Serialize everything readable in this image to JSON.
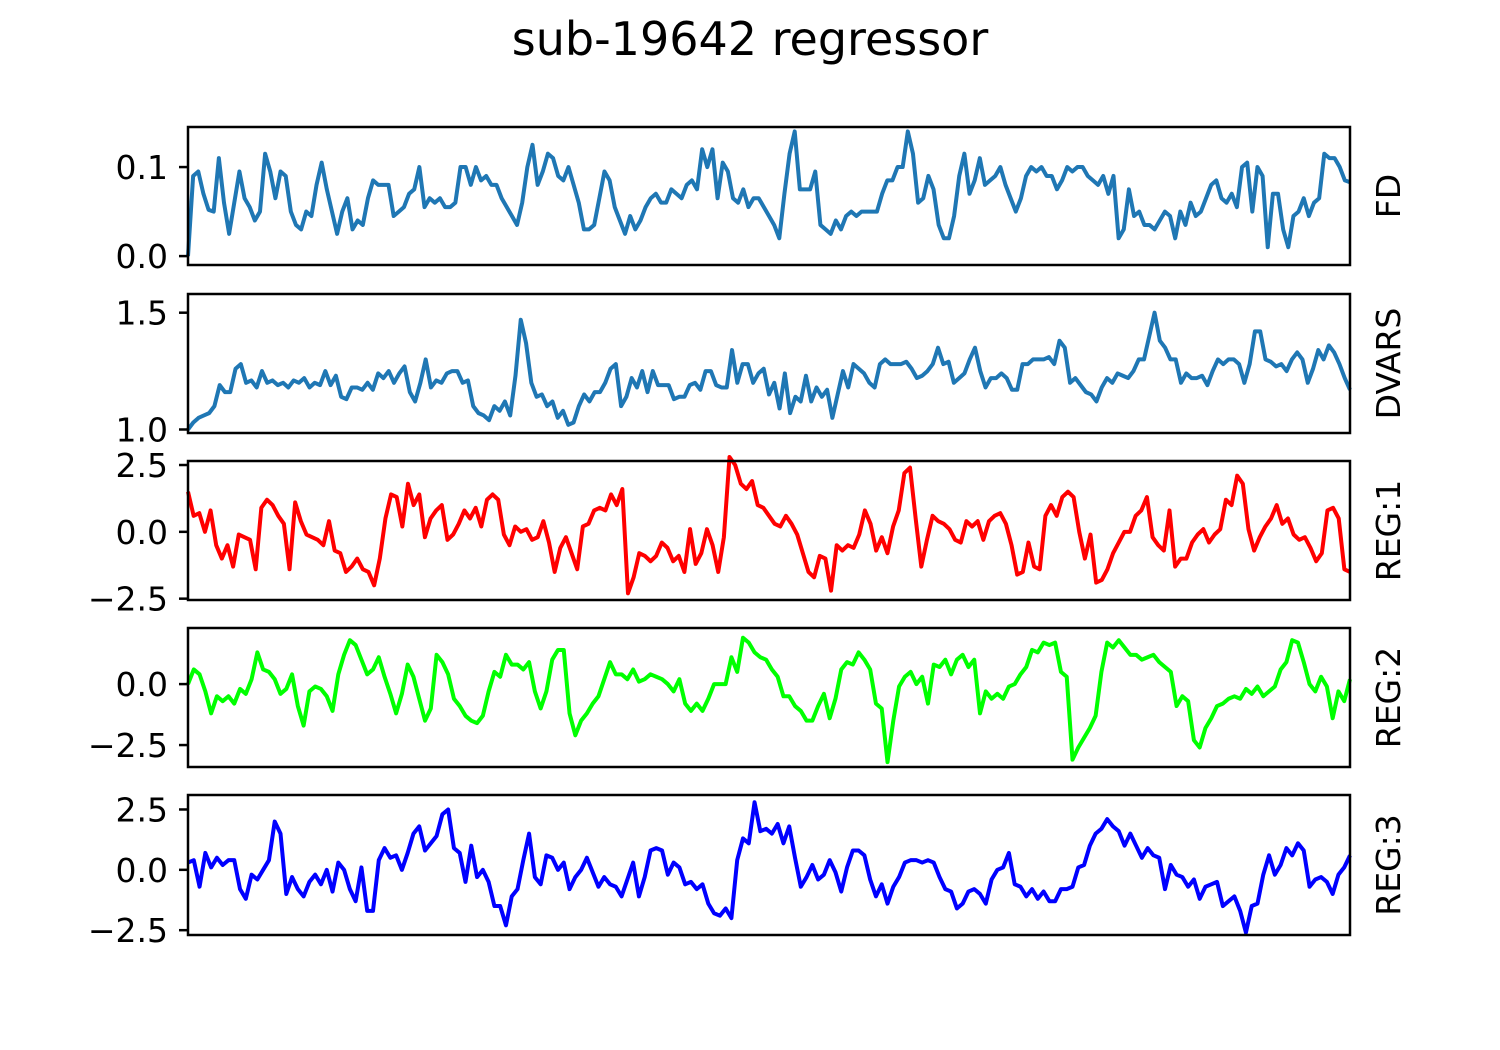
{
  "figure": {
    "title": "sub-19642 regressor"
  },
  "chart_data": [
    {
      "type": "line",
      "name": "FD",
      "color": "#1f77b4",
      "ylim": [
        -0.01,
        0.145
      ],
      "yticks": [
        0.0,
        0.1
      ],
      "yticklabels": [
        "0.0",
        "0.1"
      ],
      "values": [
        0.0,
        0.09,
        0.095,
        0.07,
        0.052,
        0.05,
        0.11,
        0.06,
        0.025,
        0.06,
        0.095,
        0.065,
        0.055,
        0.04,
        0.05,
        0.115,
        0.095,
        0.065,
        0.095,
        0.09,
        0.05,
        0.035,
        0.03,
        0.05,
        0.045,
        0.08,
        0.105,
        0.075,
        0.05,
        0.025,
        0.05,
        0.065,
        0.03,
        0.04,
        0.035,
        0.065,
        0.085,
        0.08,
        0.08,
        0.08,
        0.045,
        0.05,
        0.055,
        0.07,
        0.075,
        0.1,
        0.055,
        0.065,
        0.06,
        0.065,
        0.055,
        0.055,
        0.06,
        0.1,
        0.1,
        0.08,
        0.1,
        0.085,
        0.09,
        0.08,
        0.08,
        0.065,
        0.055,
        0.045,
        0.035,
        0.06,
        0.1,
        0.125,
        0.08,
        0.095,
        0.115,
        0.11,
        0.09,
        0.085,
        0.1,
        0.08,
        0.06,
        0.03,
        0.03,
        0.035,
        0.065,
        0.095,
        0.085,
        0.055,
        0.04,
        0.025,
        0.045,
        0.03,
        0.04,
        0.055,
        0.065,
        0.07,
        0.06,
        0.06,
        0.075,
        0.07,
        0.065,
        0.08,
        0.085,
        0.075,
        0.12,
        0.1,
        0.12,
        0.065,
        0.105,
        0.095,
        0.065,
        0.06,
        0.075,
        0.055,
        0.065,
        0.065,
        0.055,
        0.045,
        0.035,
        0.02,
        0.07,
        0.115,
        0.14,
        0.075,
        0.075,
        0.075,
        0.095,
        0.035,
        0.03,
        0.025,
        0.04,
        0.03,
        0.045,
        0.05,
        0.045,
        0.05,
        0.05,
        0.05,
        0.05,
        0.07,
        0.085,
        0.085,
        0.1,
        0.1,
        0.14,
        0.115,
        0.06,
        0.065,
        0.09,
        0.075,
        0.035,
        0.02,
        0.02,
        0.045,
        0.09,
        0.115,
        0.07,
        0.085,
        0.11,
        0.08,
        0.085,
        0.09,
        0.1,
        0.08,
        0.065,
        0.05,
        0.065,
        0.09,
        0.1,
        0.095,
        0.1,
        0.09,
        0.09,
        0.075,
        0.085,
        0.1,
        0.095,
        0.1,
        0.1,
        0.09,
        0.085,
        0.08,
        0.09,
        0.07,
        0.09,
        0.02,
        0.03,
        0.075,
        0.045,
        0.05,
        0.035,
        0.035,
        0.03,
        0.04,
        0.05,
        0.045,
        0.02,
        0.05,
        0.035,
        0.06,
        0.045,
        0.05,
        0.065,
        0.08,
        0.085,
        0.065,
        0.06,
        0.07,
        0.055,
        0.1,
        0.105,
        0.05,
        0.1,
        0.09,
        0.01,
        0.07,
        0.07,
        0.03,
        0.01,
        0.045,
        0.05,
        0.065,
        0.045,
        0.06,
        0.065,
        0.115,
        0.11,
        0.11,
        0.1,
        0.085,
        0.083
      ]
    },
    {
      "type": "line",
      "name": "DVARS",
      "color": "#1f77b4",
      "ylim": [
        0.985,
        1.58
      ],
      "yticks": [
        1.0,
        1.5
      ],
      "yticklabels": [
        "1.0",
        "1.5"
      ],
      "values": [
        1.0,
        1.03,
        1.05,
        1.06,
        1.07,
        1.1,
        1.19,
        1.16,
        1.16,
        1.26,
        1.28,
        1.2,
        1.21,
        1.18,
        1.25,
        1.2,
        1.21,
        1.19,
        1.2,
        1.18,
        1.21,
        1.2,
        1.22,
        1.18,
        1.2,
        1.19,
        1.25,
        1.19,
        1.23,
        1.14,
        1.13,
        1.18,
        1.18,
        1.17,
        1.2,
        1.17,
        1.24,
        1.22,
        1.25,
        1.2,
        1.24,
        1.27,
        1.16,
        1.12,
        1.2,
        1.3,
        1.18,
        1.21,
        1.2,
        1.24,
        1.25,
        1.25,
        1.2,
        1.21,
        1.1,
        1.07,
        1.06,
        1.04,
        1.1,
        1.08,
        1.12,
        1.06,
        1.23,
        1.47,
        1.37,
        1.2,
        1.14,
        1.15,
        1.1,
        1.12,
        1.05,
        1.08,
        1.02,
        1.03,
        1.1,
        1.15,
        1.12,
        1.16,
        1.16,
        1.2,
        1.26,
        1.28,
        1.1,
        1.14,
        1.22,
        1.18,
        1.25,
        1.16,
        1.25,
        1.19,
        1.19,
        1.19,
        1.13,
        1.14,
        1.14,
        1.19,
        1.2,
        1.17,
        1.25,
        1.25,
        1.19,
        1.18,
        1.18,
        1.34,
        1.2,
        1.28,
        1.28,
        1.2,
        1.24,
        1.26,
        1.15,
        1.2,
        1.09,
        1.24,
        1.07,
        1.14,
        1.12,
        1.23,
        1.12,
        1.18,
        1.14,
        1.17,
        1.05,
        1.15,
        1.25,
        1.18,
        1.28,
        1.26,
        1.24,
        1.2,
        1.18,
        1.28,
        1.3,
        1.28,
        1.28,
        1.28,
        1.29,
        1.26,
        1.22,
        1.23,
        1.25,
        1.28,
        1.35,
        1.28,
        1.29,
        1.2,
        1.22,
        1.24,
        1.3,
        1.35,
        1.25,
        1.18,
        1.22,
        1.22,
        1.24,
        1.22,
        1.17,
        1.17,
        1.28,
        1.28,
        1.3,
        1.3,
        1.3,
        1.31,
        1.28,
        1.38,
        1.35,
        1.2,
        1.22,
        1.19,
        1.16,
        1.15,
        1.12,
        1.18,
        1.22,
        1.2,
        1.24,
        1.23,
        1.22,
        1.25,
        1.3,
        1.3,
        1.4,
        1.5,
        1.38,
        1.35,
        1.3,
        1.3,
        1.2,
        1.24,
        1.22,
        1.22,
        1.23,
        1.19,
        1.25,
        1.3,
        1.28,
        1.3,
        1.3,
        1.28,
        1.2,
        1.28,
        1.42,
        1.42,
        1.3,
        1.29,
        1.27,
        1.28,
        1.25,
        1.3,
        1.33,
        1.3,
        1.2,
        1.26,
        1.34,
        1.3,
        1.36,
        1.33,
        1.28,
        1.22,
        1.17
      ]
    },
    {
      "type": "line",
      "name": "REG:1",
      "color": "#ff0000",
      "ylim": [
        -2.55,
        2.65
      ],
      "yticks": [
        -2.5,
        0.0,
        2.5
      ],
      "yticklabels": [
        "−2.5",
        "0.0",
        "2.5"
      ],
      "values": [
        1.5,
        0.6,
        0.7,
        0.0,
        0.8,
        -0.5,
        -1.0,
        -0.5,
        -1.3,
        -0.1,
        -0.2,
        -0.3,
        -1.4,
        0.9,
        1.2,
        1.0,
        0.6,
        0.3,
        -1.4,
        1.1,
        0.4,
        -0.1,
        -0.2,
        -0.3,
        -0.5,
        0.4,
        -0.7,
        -0.8,
        -1.5,
        -1.3,
        -1.0,
        -1.4,
        -1.5,
        -2.0,
        -1.0,
        0.5,
        1.4,
        1.3,
        0.2,
        1.8,
        1.0,
        1.4,
        -0.2,
        0.5,
        0.8,
        1.0,
        -0.3,
        -0.1,
        0.3,
        0.8,
        0.5,
        0.9,
        0.2,
        1.2,
        1.4,
        1.2,
        -0.1,
        -0.5,
        0.2,
        0.0,
        0.1,
        -0.3,
        -0.2,
        0.4,
        -0.4,
        -1.5,
        -0.6,
        -0.2,
        -0.8,
        -1.4,
        0.2,
        0.3,
        0.8,
        0.9,
        0.8,
        1.4,
        1.0,
        1.6,
        -2.3,
        -1.7,
        -0.8,
        -0.9,
        -1.1,
        -0.9,
        -0.4,
        -0.6,
        -1.1,
        -0.9,
        -1.5,
        0.1,
        -1.2,
        -0.8,
        0.1,
        -0.5,
        -1.5,
        -0.2,
        2.8,
        2.5,
        1.8,
        1.6,
        1.9,
        1.0,
        0.9,
        0.6,
        0.3,
        0.2,
        0.6,
        0.3,
        -0.1,
        -0.8,
        -1.5,
        -1.7,
        -0.9,
        -1.0,
        -2.2,
        -0.5,
        -0.7,
        -0.5,
        -0.6,
        -0.1,
        0.8,
        0.3,
        -0.7,
        -0.2,
        -0.8,
        0.2,
        0.8,
        2.2,
        2.4,
        0.5,
        -1.3,
        -0.3,
        0.6,
        0.4,
        0.3,
        0.1,
        -0.3,
        -0.4,
        0.4,
        0.2,
        0.4,
        -0.3,
        0.4,
        0.6,
        0.7,
        0.3,
        -0.5,
        -1.6,
        -1.5,
        -0.4,
        -1.3,
        -1.4,
        0.6,
        1.0,
        0.6,
        1.3,
        1.5,
        1.3,
        0.0,
        -1.0,
        -0.1,
        -1.9,
        -1.8,
        -1.4,
        -0.8,
        -0.4,
        0.0,
        0.0,
        0.6,
        0.8,
        1.3,
        -0.2,
        -0.5,
        -0.7,
        0.8,
        -1.3,
        -1.0,
        -1.0,
        -0.4,
        -0.1,
        0.1,
        -0.4,
        -0.1,
        0.1,
        1.2,
        1.0,
        2.1,
        1.8,
        0.1,
        -0.7,
        -0.2,
        0.2,
        0.5,
        1.0,
        0.3,
        0.5,
        -0.1,
        -0.3,
        -0.2,
        -0.6,
        -1.1,
        -0.8,
        0.8,
        0.9,
        0.5,
        -1.4,
        -1.5
      ]
    },
    {
      "type": "line",
      "name": "REG:2",
      "color": "#00ff00",
      "ylim": [
        -3.4,
        2.3
      ],
      "yticks": [
        -2.5,
        0.0
      ],
      "yticklabels": [
        "−2.5",
        "0.0"
      ],
      "values": [
        0.0,
        0.6,
        0.4,
        -0.3,
        -1.2,
        -0.5,
        -0.7,
        -0.5,
        -0.8,
        -0.2,
        -0.4,
        0.2,
        1.3,
        0.6,
        0.5,
        0.2,
        -0.4,
        -0.2,
        0.4,
        -0.9,
        -1.7,
        -0.3,
        -0.1,
        -0.2,
        -0.5,
        -1.1,
        0.4,
        1.2,
        1.8,
        1.6,
        1.0,
        0.4,
        0.6,
        1.1,
        0.3,
        -0.4,
        -1.2,
        -0.4,
        0.8,
        0.3,
        -0.6,
        -1.5,
        -1.0,
        1.2,
        0.9,
        0.4,
        -0.6,
        -0.9,
        -1.3,
        -1.5,
        -1.6,
        -1.3,
        -0.3,
        0.5,
        0.3,
        1.2,
        0.8,
        0.8,
        0.6,
        0.9,
        -0.3,
        -1.0,
        -0.3,
        1.0,
        1.4,
        1.4,
        -1.2,
        -2.1,
        -1.5,
        -1.2,
        -0.8,
        -0.5,
        0.2,
        0.9,
        0.4,
        0.4,
        0.2,
        0.6,
        0.1,
        0.2,
        0.4,
        0.3,
        0.2,
        0.0,
        -0.3,
        0.2,
        -0.8,
        -1.1,
        -0.8,
        -1.1,
        -0.6,
        0.0,
        0.0,
        0.0,
        1.1,
        0.5,
        1.9,
        1.7,
        1.3,
        1.1,
        1.0,
        0.6,
        0.3,
        -0.5,
        -0.5,
        -0.9,
        -1.1,
        -1.5,
        -1.5,
        -0.9,
        -0.4,
        -1.4,
        -0.6,
        0.6,
        0.9,
        0.8,
        1.3,
        1.0,
        0.6,
        -0.8,
        -1.0,
        -3.2,
        -1.5,
        -0.1,
        0.3,
        0.5,
        0.0,
        0.3,
        -0.8,
        0.8,
        0.7,
        1.0,
        0.4,
        1.0,
        1.2,
        0.7,
        1.0,
        -1.2,
        -0.3,
        -0.6,
        -0.4,
        -0.6,
        -0.1,
        0.0,
        0.4,
        0.7,
        1.4,
        1.3,
        1.7,
        1.6,
        1.7,
        0.5,
        0.3,
        -3.1,
        -2.6,
        -2.2,
        -1.8,
        -1.3,
        0.5,
        1.7,
        1.5,
        1.8,
        1.5,
        1.2,
        1.2,
        1.0,
        1.1,
        1.2,
        0.9,
        0.7,
        0.5,
        -0.9,
        -0.5,
        -0.7,
        -2.3,
        -2.6,
        -1.8,
        -1.4,
        -0.9,
        -0.8,
        -0.6,
        -0.5,
        -0.6,
        -0.2,
        -0.4,
        -0.1,
        -0.5,
        -0.3,
        -0.1,
        0.6,
        0.9,
        1.8,
        1.7,
        0.9,
        0.0,
        -0.3,
        0.3,
        -0.1,
        -1.4,
        -0.3,
        -0.7,
        0.2
      ]
    },
    {
      "type": "line",
      "name": "REG:3",
      "color": "#0000ff",
      "ylim": [
        -2.7,
        3.1
      ],
      "yticks": [
        -2.5,
        0.0,
        2.5
      ],
      "yticklabels": [
        "−2.5",
        "0.0",
        "2.5"
      ],
      "values": [
        0.3,
        0.4,
        -0.7,
        0.7,
        0.1,
        0.5,
        0.2,
        0.4,
        0.4,
        -0.8,
        -1.2,
        -0.2,
        -0.4,
        0.0,
        0.4,
        2.0,
        1.5,
        -1.0,
        -0.3,
        -0.8,
        -1.1,
        -0.5,
        -0.2,
        -0.6,
        0.0,
        -0.9,
        0.3,
        0.0,
        -0.8,
        -1.3,
        0.1,
        -1.7,
        -1.7,
        0.4,
        0.9,
        0.5,
        0.6,
        0.0,
        0.7,
        1.5,
        1.8,
        0.8,
        1.1,
        1.4,
        2.3,
        2.5,
        0.9,
        0.7,
        -0.5,
        1.0,
        -0.3,
        0.0,
        -0.5,
        -1.5,
        -1.5,
        -2.3,
        -1.1,
        -0.8,
        0.4,
        1.5,
        -0.3,
        -0.6,
        0.6,
        0.5,
        0.0,
        0.3,
        -0.8,
        -0.3,
        0.0,
        0.5,
        -0.1,
        -0.7,
        -0.3,
        -0.6,
        -0.7,
        -1.1,
        -0.4,
        0.3,
        -1.1,
        -0.3,
        0.8,
        0.9,
        0.8,
        -0.2,
        0.3,
        0.1,
        -0.6,
        -0.5,
        -0.8,
        -0.6,
        -1.4,
        -1.8,
        -1.9,
        -1.6,
        -2.0,
        0.4,
        1.3,
        1.1,
        2.8,
        1.6,
        1.7,
        1.5,
        1.9,
        1.1,
        1.8,
        0.5,
        -0.7,
        -0.3,
        0.2,
        -0.4,
        -0.2,
        0.4,
        -0.1,
        -0.9,
        0.1,
        0.8,
        0.8,
        0.6,
        -0.4,
        -1.1,
        -0.6,
        -1.4,
        -0.7,
        -0.3,
        0.3,
        0.4,
        0.4,
        0.3,
        0.4,
        0.3,
        -0.3,
        -0.8,
        -0.9,
        -1.6,
        -1.4,
        -0.9,
        -0.8,
        -1.0,
        -1.4,
        -0.4,
        0.0,
        0.1,
        0.7,
        -0.6,
        -0.7,
        -1.1,
        -0.8,
        -1.2,
        -0.9,
        -1.3,
        -1.3,
        -0.8,
        -0.8,
        -0.7,
        0.1,
        0.2,
        1.0,
        1.5,
        1.7,
        2.1,
        1.8,
        1.6,
        1.0,
        1.5,
        1.0,
        0.5,
        0.9,
        0.6,
        0.5,
        -0.8,
        0.2,
        -0.2,
        -0.3,
        -0.7,
        -0.4,
        -1.2,
        -0.7,
        -0.6,
        -0.5,
        -1.5,
        -1.3,
        -1.1,
        -1.7,
        -2.6,
        -1.5,
        -1.4,
        -0.2,
        0.6,
        -0.2,
        0.2,
        0.9,
        0.6,
        1.1,
        0.8,
        -0.7,
        -0.4,
        -0.3,
        -0.5,
        -1.0,
        -0.2,
        0.1,
        0.6
      ]
    }
  ]
}
